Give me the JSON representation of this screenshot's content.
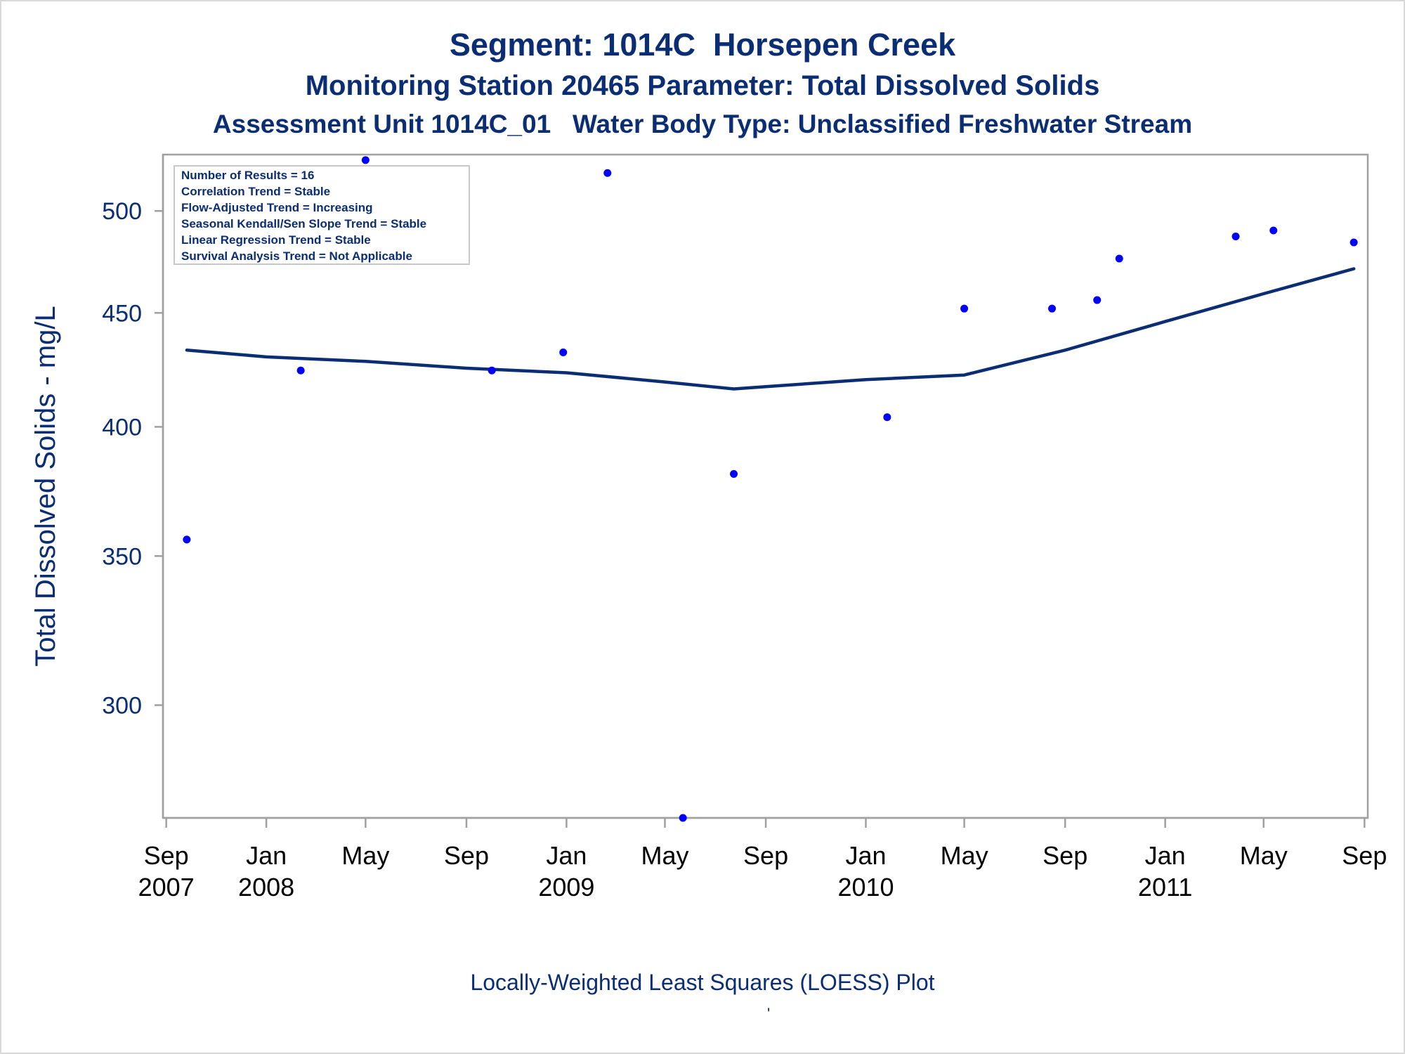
{
  "titles": {
    "line1": "Segment: 1014C  Horsepen Creek",
    "line2": "Monitoring Station 20465 Parameter: Total Dissolved Solids",
    "line3": "Assessment Unit 1014C_01   Water Body Type: Unclassified Freshwater Stream"
  },
  "footnote": "Locally-Weighted Least Squares (LOESS) Plot",
  "footnote_mark": "'",
  "colors": {
    "text": "#0a2d74",
    "points": "#0000ff",
    "loess": "#0a2d74",
    "frame": "#a0a0a0"
  },
  "chart_data": {
    "type": "scatter",
    "title": "",
    "xlabel": "",
    "ylabel": "Total Dissolved Solids - mg/L",
    "y_scale": "log",
    "ylim": [
      267,
      530
    ],
    "y_ticks": [
      300,
      350,
      400,
      450,
      500
    ],
    "y_tick_labels": [
      "300",
      "350",
      "400",
      "450",
      "500"
    ],
    "xlim": [
      "2007-08-28",
      "2011-09-05"
    ],
    "x_ticks": [
      "2007-09-01",
      "2008-01-01",
      "2008-05-01",
      "2008-09-01",
      "2009-01-01",
      "2009-05-01",
      "2009-09-01",
      "2010-01-01",
      "2010-05-01",
      "2010-09-01",
      "2011-01-01",
      "2011-05-01",
      "2011-09-01"
    ],
    "x_tick_labels": [
      [
        "Sep",
        "2007"
      ],
      [
        "Jan",
        "2008"
      ],
      [
        "May",
        ""
      ],
      [
        "Sep",
        ""
      ],
      [
        "Jan",
        "2009"
      ],
      [
        "May",
        ""
      ],
      [
        "Sep",
        ""
      ],
      [
        "Jan",
        "2010"
      ],
      [
        "May",
        ""
      ],
      [
        "Sep",
        ""
      ],
      [
        "Jan",
        "2011"
      ],
      [
        "May",
        ""
      ],
      [
        "Sep",
        ""
      ]
    ],
    "grid": false,
    "legend_position": "top-left",
    "stats_box": [
      "Number of Results = 16",
      "Correlation Trend = Stable",
      "Flow-Adjusted Trend = Increasing",
      "Seasonal Kendall/Sen Slope Trend = Stable",
      "Linear Regression Trend = Stable",
      "Survival Analysis Trend = Not Applicable"
    ],
    "series": [
      {
        "type": "scatter",
        "x": [
          "2007-09-26",
          "2008-02-12",
          "2008-05-01",
          "2008-10-02",
          "2008-12-28",
          "2009-02-20",
          "2009-05-23",
          "2009-07-24",
          "2010-01-27",
          "2010-05-01",
          "2010-08-16",
          "2010-10-10",
          "2010-11-06",
          "2011-03-28",
          "2011-05-13",
          "2011-08-19"
        ],
        "y": [
          356,
          424,
          527,
          424,
          432,
          520,
          267,
          381,
          404,
          452,
          452,
          456,
          476,
          487,
          490,
          484
        ]
      },
      {
        "type": "line",
        "x": [
          "2007-09-26",
          "2008-01-01",
          "2008-05-01",
          "2008-09-01",
          "2009-01-01",
          "2009-05-01",
          "2009-07-24",
          "2009-09-01",
          "2010-01-01",
          "2010-05-01",
          "2010-09-01",
          "2011-01-01",
          "2011-05-01",
          "2011-08-19"
        ],
        "y": [
          433,
          430,
          428,
          425,
          423,
          419,
          416,
          417,
          420,
          422,
          433,
          446,
          459,
          471
        ]
      }
    ]
  }
}
